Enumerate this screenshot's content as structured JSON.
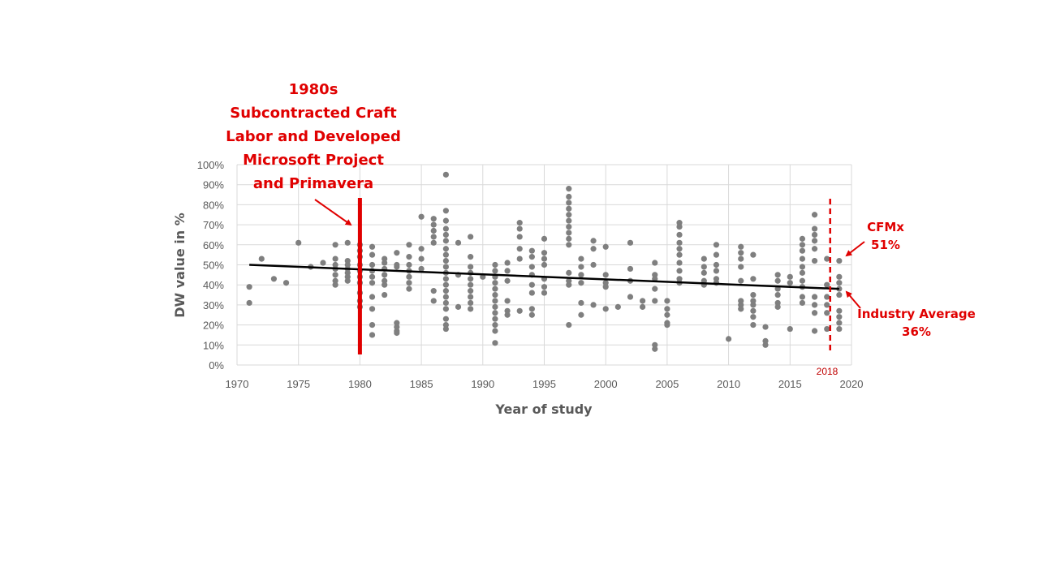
{
  "chart_data": {
    "type": "scatter",
    "title": "",
    "xlabel": "Year of study",
    "ylabel": "DW value in %",
    "xlim": [
      1970,
      2020
    ],
    "ylim": [
      0,
      100
    ],
    "x_ticks": [
      1970,
      1975,
      1980,
      1985,
      1990,
      1995,
      2000,
      2005,
      2010,
      2015,
      2020
    ],
    "y_ticks": [
      0,
      10,
      20,
      30,
      40,
      50,
      60,
      70,
      80,
      90,
      100
    ],
    "y_tick_suffix": "%",
    "grid": true,
    "legend": "none",
    "colors": {
      "points": "#7f7f7f",
      "trend": "#000000",
      "annotation": "#e00000",
      "grid": "#d9d9d9"
    },
    "trendline": {
      "from": [
        1971,
        50
      ],
      "to": [
        2019,
        38
      ]
    },
    "series": [
      {
        "points": [
          [
            1971,
            39
          ],
          [
            1971,
            31
          ],
          [
            1972,
            53
          ],
          [
            1973,
            43
          ],
          [
            1974,
            41
          ],
          [
            1975,
            61
          ],
          [
            1976,
            49
          ],
          [
            1977,
            51
          ],
          [
            1978,
            60
          ],
          [
            1978,
            53
          ],
          [
            1978,
            50
          ],
          [
            1978,
            48
          ],
          [
            1978,
            45
          ],
          [
            1978,
            42
          ],
          [
            1978,
            40
          ],
          [
            1979,
            61
          ],
          [
            1979,
            52
          ],
          [
            1979,
            50
          ],
          [
            1979,
            48
          ],
          [
            1979,
            46
          ],
          [
            1979,
            44
          ],
          [
            1979,
            42
          ],
          [
            1980,
            60
          ],
          [
            1980,
            57
          ],
          [
            1980,
            54
          ],
          [
            1980,
            50
          ],
          [
            1980,
            47
          ],
          [
            1980,
            44
          ],
          [
            1980,
            41
          ],
          [
            1980,
            36
          ],
          [
            1980,
            32
          ],
          [
            1980,
            29
          ],
          [
            1981,
            59
          ],
          [
            1981,
            55
          ],
          [
            1981,
            50
          ],
          [
            1981,
            47
          ],
          [
            1981,
            44
          ],
          [
            1981,
            41
          ],
          [
            1981,
            34
          ],
          [
            1981,
            28
          ],
          [
            1981,
            20
          ],
          [
            1981,
            15
          ],
          [
            1982,
            53
          ],
          [
            1982,
            51
          ],
          [
            1982,
            48
          ],
          [
            1982,
            45
          ],
          [
            1982,
            42
          ],
          [
            1982,
            40
          ],
          [
            1982,
            35
          ],
          [
            1983,
            56
          ],
          [
            1983,
            50
          ],
          [
            1983,
            49
          ],
          [
            1983,
            21
          ],
          [
            1983,
            19
          ],
          [
            1983,
            17
          ],
          [
            1983,
            16
          ],
          [
            1984,
            60
          ],
          [
            1984,
            54
          ],
          [
            1984,
            50
          ],
          [
            1984,
            47
          ],
          [
            1984,
            44
          ],
          [
            1984,
            41
          ],
          [
            1984,
            38
          ],
          [
            1985,
            74
          ],
          [
            1985,
            58
          ],
          [
            1985,
            53
          ],
          [
            1985,
            48
          ],
          [
            1986,
            73
          ],
          [
            1986,
            70
          ],
          [
            1986,
            67
          ],
          [
            1986,
            64
          ],
          [
            1986,
            61
          ],
          [
            1986,
            37
          ],
          [
            1986,
            32
          ],
          [
            1987,
            95
          ],
          [
            1987,
            77
          ],
          [
            1987,
            72
          ],
          [
            1987,
            68
          ],
          [
            1987,
            65
          ],
          [
            1987,
            62
          ],
          [
            1987,
            58
          ],
          [
            1987,
            55
          ],
          [
            1987,
            52
          ],
          [
            1987,
            49
          ],
          [
            1987,
            46
          ],
          [
            1987,
            43
          ],
          [
            1987,
            40
          ],
          [
            1987,
            37
          ],
          [
            1987,
            34
          ],
          [
            1987,
            31
          ],
          [
            1987,
            28
          ],
          [
            1987,
            23
          ],
          [
            1987,
            20
          ],
          [
            1987,
            18
          ],
          [
            1988,
            61
          ],
          [
            1988,
            45
          ],
          [
            1988,
            29
          ],
          [
            1989,
            64
          ],
          [
            1989,
            54
          ],
          [
            1989,
            49
          ],
          [
            1989,
            46
          ],
          [
            1989,
            43
          ],
          [
            1989,
            40
          ],
          [
            1989,
            37
          ],
          [
            1989,
            34
          ],
          [
            1989,
            31
          ],
          [
            1989,
            28
          ],
          [
            1990,
            44
          ],
          [
            1991,
            50
          ],
          [
            1991,
            47
          ],
          [
            1991,
            44
          ],
          [
            1991,
            41
          ],
          [
            1991,
            38
          ],
          [
            1991,
            35
          ],
          [
            1991,
            32
          ],
          [
            1991,
            29
          ],
          [
            1991,
            26
          ],
          [
            1991,
            23
          ],
          [
            1991,
            20
          ],
          [
            1991,
            17
          ],
          [
            1991,
            11
          ],
          [
            1992,
            51
          ],
          [
            1992,
            47
          ],
          [
            1992,
            42
          ],
          [
            1992,
            32
          ],
          [
            1992,
            27
          ],
          [
            1992,
            25
          ],
          [
            1993,
            71
          ],
          [
            1993,
            68
          ],
          [
            1993,
            64
          ],
          [
            1993,
            58
          ],
          [
            1993,
            53
          ],
          [
            1993,
            27
          ],
          [
            1994,
            57
          ],
          [
            1994,
            54
          ],
          [
            1994,
            49
          ],
          [
            1994,
            45
          ],
          [
            1994,
            40
          ],
          [
            1994,
            36
          ],
          [
            1994,
            28
          ],
          [
            1994,
            25
          ],
          [
            1995,
            63
          ],
          [
            1995,
            56
          ],
          [
            1995,
            53
          ],
          [
            1995,
            50
          ],
          [
            1995,
            43
          ],
          [
            1995,
            39
          ],
          [
            1995,
            36
          ],
          [
            1997,
            88
          ],
          [
            1997,
            84
          ],
          [
            1997,
            81
          ],
          [
            1997,
            78
          ],
          [
            1997,
            75
          ],
          [
            1997,
            72
          ],
          [
            1997,
            69
          ],
          [
            1997,
            66
          ],
          [
            1997,
            63
          ],
          [
            1997,
            60
          ],
          [
            1997,
            46
          ],
          [
            1997,
            42
          ],
          [
            1997,
            40
          ],
          [
            1997,
            20
          ],
          [
            1998,
            53
          ],
          [
            1998,
            49
          ],
          [
            1998,
            45
          ],
          [
            1998,
            41
          ],
          [
            1998,
            31
          ],
          [
            1998,
            25
          ],
          [
            1999,
            62
          ],
          [
            1999,
            58
          ],
          [
            1999,
            50
          ],
          [
            1999,
            30
          ],
          [
            2000,
            59
          ],
          [
            2000,
            45
          ],
          [
            2000,
            41
          ],
          [
            2000,
            39
          ],
          [
            2000,
            28
          ],
          [
            2001,
            29
          ],
          [
            2002,
            61
          ],
          [
            2002,
            48
          ],
          [
            2002,
            42
          ],
          [
            2002,
            34
          ],
          [
            2003,
            32
          ],
          [
            2003,
            29
          ],
          [
            2004,
            51
          ],
          [
            2004,
            45
          ],
          [
            2004,
            43
          ],
          [
            2004,
            38
          ],
          [
            2004,
            32
          ],
          [
            2004,
            10
          ],
          [
            2004,
            8
          ],
          [
            2005,
            32
          ],
          [
            2005,
            28
          ],
          [
            2005,
            25
          ],
          [
            2005,
            21
          ],
          [
            2005,
            20
          ],
          [
            2006,
            71
          ],
          [
            2006,
            69
          ],
          [
            2006,
            65
          ],
          [
            2006,
            61
          ],
          [
            2006,
            58
          ],
          [
            2006,
            55
          ],
          [
            2006,
            51
          ],
          [
            2006,
            47
          ],
          [
            2006,
            43
          ],
          [
            2006,
            41
          ],
          [
            2008,
            53
          ],
          [
            2008,
            49
          ],
          [
            2008,
            46
          ],
          [
            2008,
            42
          ],
          [
            2008,
            40
          ],
          [
            2009,
            60
          ],
          [
            2009,
            55
          ],
          [
            2009,
            50
          ],
          [
            2009,
            47
          ],
          [
            2009,
            43
          ],
          [
            2009,
            41
          ],
          [
            2010,
            13
          ],
          [
            2011,
            59
          ],
          [
            2011,
            56
          ],
          [
            2011,
            53
          ],
          [
            2011,
            49
          ],
          [
            2011,
            42
          ],
          [
            2011,
            32
          ],
          [
            2011,
            30
          ],
          [
            2011,
            28
          ],
          [
            2012,
            55
          ],
          [
            2012,
            43
          ],
          [
            2012,
            35
          ],
          [
            2012,
            32
          ],
          [
            2012,
            30
          ],
          [
            2012,
            27
          ],
          [
            2012,
            24
          ],
          [
            2012,
            20
          ],
          [
            2013,
            19
          ],
          [
            2013,
            12
          ],
          [
            2013,
            10
          ],
          [
            2014,
            45
          ],
          [
            2014,
            42
          ],
          [
            2014,
            38
          ],
          [
            2014,
            35
          ],
          [
            2014,
            31
          ],
          [
            2014,
            29
          ],
          [
            2015,
            44
          ],
          [
            2015,
            41
          ],
          [
            2015,
            18
          ],
          [
            2016,
            63
          ],
          [
            2016,
            60
          ],
          [
            2016,
            57
          ],
          [
            2016,
            53
          ],
          [
            2016,
            49
          ],
          [
            2016,
            46
          ],
          [
            2016,
            42
          ],
          [
            2016,
            39
          ],
          [
            2016,
            34
          ],
          [
            2016,
            31
          ],
          [
            2017,
            75
          ],
          [
            2017,
            68
          ],
          [
            2017,
            65
          ],
          [
            2017,
            62
          ],
          [
            2017,
            58
          ],
          [
            2017,
            52
          ],
          [
            2017,
            34
          ],
          [
            2017,
            30
          ],
          [
            2017,
            26
          ],
          [
            2017,
            17
          ],
          [
            2018,
            53
          ],
          [
            2018,
            40
          ],
          [
            2018,
            34
          ],
          [
            2018,
            30
          ],
          [
            2018,
            26
          ],
          [
            2018,
            18
          ],
          [
            2019,
            52
          ],
          [
            2019,
            44
          ],
          [
            2019,
            41
          ],
          [
            2019,
            38
          ],
          [
            2019,
            35
          ],
          [
            2019,
            27
          ],
          [
            2019,
            24
          ],
          [
            2019,
            21
          ],
          [
            2019,
            18
          ]
        ]
      }
    ],
    "annotations": {
      "era_title": "1980s",
      "era_lines": [
        "Subcontracted Craft",
        "Labor and Developed",
        "Microsoft Project",
        "and Primavera"
      ],
      "era_marker_year": 1980,
      "cutoff_year_label": "2018",
      "cfmx_label": "CFMx",
      "cfmx_value": "51%",
      "industry_label": "Industry Average",
      "industry_value": "36%"
    }
  }
}
